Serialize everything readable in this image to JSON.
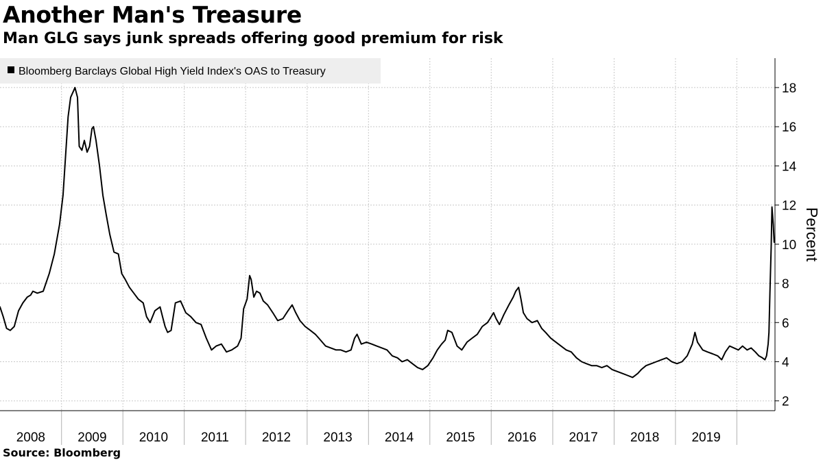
{
  "title": "Another Man's Treasure",
  "subtitle": "Man GLG says junk spreads offering good premium for risk",
  "source": "Source: Bloomberg",
  "colors": {
    "line": "#000000",
    "grid": "#c8c8c8",
    "legend_bg": "#eeeeee"
  },
  "chart_data": {
    "type": "line",
    "title": "Another Man's Treasure",
    "subtitle": "Man GLG says junk spreads offering good premium for risk",
    "ylabel": "Percent",
    "ylim": [
      1.5,
      19.5
    ],
    "yticks": [
      2,
      4,
      6,
      8,
      10,
      12,
      14,
      16,
      18
    ],
    "y_axis_side": "right",
    "grid": true,
    "legend_position": "top-left",
    "xlim": [
      "2007-09-01",
      "2020-04-15"
    ],
    "x_tick_labels": [
      "2008",
      "2009",
      "2010",
      "2011",
      "2012",
      "2013",
      "2014",
      "2015",
      "2016",
      "2017",
      "2018",
      "2019"
    ],
    "x_boundaries": [
      "2008-09-01",
      "2009-09-01",
      "2010-09-01",
      "2011-09-01",
      "2012-09-01",
      "2013-09-01",
      "2014-09-01",
      "2015-09-01",
      "2016-09-01",
      "2017-09-01",
      "2018-09-01",
      "2019-09-01"
    ],
    "series": [
      {
        "name": "Bloomberg Barclays Global High Yield Index's OAS to Treasury",
        "x": [
          "2007-09-01",
          "2007-09-20",
          "2007-10-10",
          "2007-11-01",
          "2007-11-25",
          "2007-12-20",
          "2008-01-15",
          "2008-02-10",
          "2008-03-01",
          "2008-03-15",
          "2008-04-10",
          "2008-05-15",
          "2008-06-20",
          "2008-07-20",
          "2008-08-20",
          "2008-09-10",
          "2008-09-25",
          "2008-10-10",
          "2008-10-25",
          "2008-11-10",
          "2008-11-20",
          "2008-12-05",
          "2008-12-15",
          "2008-12-31",
          "2009-01-15",
          "2009-01-31",
          "2009-02-15",
          "2009-03-01",
          "2009-03-10",
          "2009-03-25",
          "2009-04-15",
          "2009-05-05",
          "2009-05-25",
          "2009-06-15",
          "2009-07-10",
          "2009-08-05",
          "2009-08-25",
          "2009-09-15",
          "2009-10-10",
          "2009-11-05",
          "2009-12-01",
          "2009-12-31",
          "2010-01-20",
          "2010-02-10",
          "2010-03-10",
          "2010-04-10",
          "2010-04-25",
          "2010-05-10",
          "2010-05-25",
          "2010-06-15",
          "2010-07-10",
          "2010-08-10",
          "2010-09-10",
          "2010-10-10",
          "2010-11-10",
          "2010-12-10",
          "2011-01-10",
          "2011-02-10",
          "2011-03-10",
          "2011-04-10",
          "2011-05-10",
          "2011-06-10",
          "2011-07-15",
          "2011-08-05",
          "2011-08-20",
          "2011-09-10",
          "2011-09-25",
          "2011-10-04",
          "2011-10-20",
          "2011-11-05",
          "2011-11-25",
          "2011-12-15",
          "2012-01-10",
          "2012-02-10",
          "2012-03-10",
          "2012-04-10",
          "2012-05-10",
          "2012-06-04",
          "2012-06-25",
          "2012-07-20",
          "2012-08-20",
          "2012-09-20",
          "2012-10-20",
          "2012-11-20",
          "2012-12-20",
          "2013-01-20",
          "2013-02-20",
          "2013-03-20",
          "2013-04-20",
          "2013-05-20",
          "2013-06-10",
          "2013-06-25",
          "2013-07-20",
          "2013-08-20",
          "2013-09-20",
          "2013-10-20",
          "2013-11-20",
          "2013-12-20",
          "2014-01-20",
          "2014-02-20",
          "2014-03-20",
          "2014-04-20",
          "2014-05-20",
          "2014-06-20",
          "2014-07-20",
          "2014-08-20",
          "2014-09-20",
          "2014-10-15",
          "2014-11-10",
          "2014-12-01",
          "2014-12-16",
          "2015-01-10",
          "2015-02-10",
          "2015-03-10",
          "2015-04-10",
          "2015-05-10",
          "2015-06-10",
          "2015-07-10",
          "2015-08-10",
          "2015-08-25",
          "2015-09-15",
          "2015-09-30",
          "2015-10-20",
          "2015-11-15",
          "2015-12-15",
          "2016-01-10",
          "2016-01-25",
          "2016-02-11",
          "2016-02-25",
          "2016-03-10",
          "2016-04-01",
          "2016-05-01",
          "2016-06-01",
          "2016-06-27",
          "2016-07-20",
          "2016-08-20",
          "2016-09-20",
          "2016-10-20",
          "2016-11-20",
          "2016-12-20",
          "2017-01-20",
          "2017-02-20",
          "2017-03-20",
          "2017-04-20",
          "2017-05-20",
          "2017-06-20",
          "2017-07-20",
          "2017-08-20",
          "2017-09-20",
          "2017-10-20",
          "2017-11-20",
          "2017-12-20",
          "2018-01-20",
          "2018-02-10",
          "2018-03-10",
          "2018-04-10",
          "2018-05-10",
          "2018-06-10",
          "2018-07-10",
          "2018-08-10",
          "2018-09-10",
          "2018-10-10",
          "2018-11-10",
          "2018-12-10",
          "2018-12-26",
          "2019-01-10",
          "2019-02-10",
          "2019-03-10",
          "2019-04-10",
          "2019-05-10",
          "2019-06-03",
          "2019-06-25",
          "2019-07-20",
          "2019-08-15",
          "2019-09-10",
          "2019-10-05",
          "2019-11-01",
          "2019-11-25",
          "2019-12-20",
          "2020-01-10",
          "2020-01-31",
          "2020-02-15",
          "2020-02-25",
          "2020-03-05",
          "2020-03-10",
          "2020-03-16",
          "2020-03-23",
          "2020-03-28",
          "2020-04-05",
          "2020-04-10"
        ],
        "y": [
          6.8,
          6.3,
          5.7,
          5.6,
          5.8,
          6.6,
          7.0,
          7.3,
          7.4,
          7.6,
          7.5,
          7.6,
          8.5,
          9.5,
          11.0,
          12.5,
          14.5,
          16.5,
          17.5,
          17.8,
          18.0,
          17.5,
          15.0,
          14.8,
          15.3,
          14.7,
          15.0,
          15.9,
          16.0,
          15.3,
          14.0,
          12.5,
          11.5,
          10.5,
          9.6,
          9.5,
          8.5,
          8.2,
          7.8,
          7.5,
          7.2,
          7.0,
          6.3,
          6.0,
          6.6,
          6.8,
          6.3,
          5.8,
          5.5,
          5.6,
          7.0,
          7.1,
          6.5,
          6.3,
          6.0,
          5.9,
          5.2,
          4.6,
          4.8,
          4.9,
          4.5,
          4.6,
          4.8,
          5.2,
          6.7,
          7.2,
          8.4,
          8.2,
          7.3,
          7.6,
          7.5,
          7.1,
          6.9,
          6.5,
          6.1,
          6.2,
          6.6,
          6.9,
          6.5,
          6.1,
          5.8,
          5.6,
          5.4,
          5.1,
          4.8,
          4.7,
          4.6,
          4.6,
          4.5,
          4.6,
          5.2,
          5.4,
          4.9,
          5.0,
          4.9,
          4.8,
          4.7,
          4.6,
          4.3,
          4.2,
          4.0,
          4.1,
          3.9,
          3.7,
          3.6,
          3.8,
          4.2,
          4.6,
          4.9,
          5.1,
          5.6,
          5.5,
          4.8,
          4.6,
          5.0,
          5.2,
          5.4,
          5.8,
          6.0,
          6.2,
          6.5,
          6.2,
          5.9,
          6.4,
          6.9,
          7.3,
          7.6,
          7.8,
          7.2,
          6.5,
          6.2,
          6.0,
          6.1,
          5.7,
          5.5,
          5.2,
          5.0,
          4.8,
          4.6,
          4.5,
          4.2,
          4.0,
          3.9,
          3.8,
          3.8,
          3.7,
          3.8,
          3.6,
          3.5,
          3.4,
          3.3,
          3.2,
          3.4,
          3.6,
          3.8,
          3.9,
          4.0,
          4.1,
          4.2,
          4.0,
          3.9,
          4.0,
          4.3,
          4.9,
          5.5,
          5.0,
          4.6,
          4.5,
          4.4,
          4.3,
          4.1,
          4.5,
          4.8,
          4.7,
          4.6,
          4.8,
          4.6,
          4.7,
          4.5,
          4.3,
          4.2,
          4.1,
          4.3,
          4.9,
          5.5,
          7.5,
          9.8,
          11.9,
          11.0,
          10.1
        ]
      }
    ]
  }
}
